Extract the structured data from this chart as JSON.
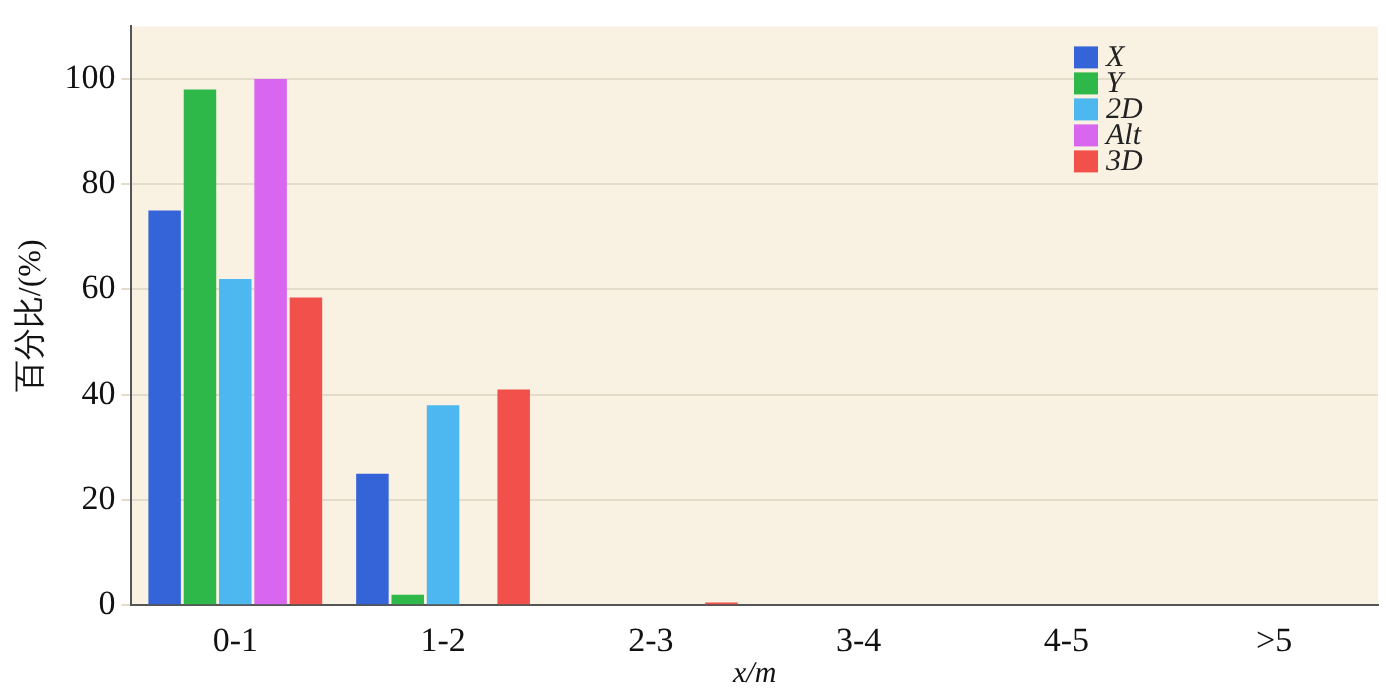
{
  "chart_data": {
    "type": "bar",
    "xlabel": "x/m",
    "ylabel": "百分比/(%)",
    "categories": [
      "0-1",
      "1-2",
      "2-3",
      "3-4",
      "4-5",
      ">5"
    ],
    "series": [
      {
        "name": "X",
        "color": "#3563d8",
        "values": [
          75,
          25,
          0,
          0,
          0,
          0
        ]
      },
      {
        "name": "Y",
        "color": "#2fb84a",
        "values": [
          98,
          2,
          0,
          0,
          0,
          0
        ]
      },
      {
        "name": "2D",
        "color": "#4db8f0",
        "values": [
          62,
          38,
          0,
          0,
          0,
          0
        ]
      },
      {
        "name": "Alt",
        "color": "#d866ee",
        "values": [
          100,
          0,
          0,
          0,
          0,
          0
        ]
      },
      {
        "name": "3D",
        "color": "#f2504a",
        "values": [
          58.5,
          41,
          0.5,
          0,
          0,
          0
        ]
      }
    ],
    "ylim": [
      0,
      110
    ],
    "yticks": [
      0,
      20,
      40,
      60,
      80,
      100
    ],
    "grid": "y",
    "legend": "top right"
  }
}
